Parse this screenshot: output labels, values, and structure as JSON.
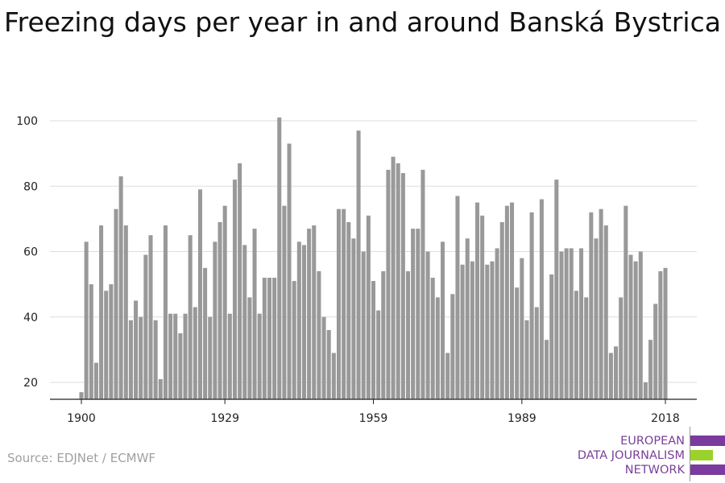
{
  "title": "Freezing days per year in and around Banská Bystrica",
  "source": "Source: EDJNet / ECMWF",
  "logo": {
    "lines": [
      "EUROPEAN",
      "DATA JOURNALISM",
      "NETWORK"
    ],
    "colors": [
      "#7b3b9e",
      "#9bd22a",
      "#7b3b9e"
    ]
  },
  "chart_data": {
    "type": "bar",
    "title": "Freezing days per year in and around Banská Bystrica",
    "xlabel": "",
    "ylabel": "",
    "x_start": 1900,
    "x_end": 2018,
    "xticks": [
      1900,
      1929,
      1959,
      1989,
      2018
    ],
    "yticks": [
      20,
      40,
      60,
      80,
      100
    ],
    "ylim": [
      15,
      102
    ],
    "grid": true,
    "bar_color": "#999999",
    "values": [
      17,
      63,
      50,
      26,
      68,
      48,
      50,
      73,
      83,
      68,
      39,
      45,
      40,
      59,
      65,
      39,
      21,
      68,
      41,
      41,
      35,
      41,
      65,
      43,
      79,
      55,
      40,
      63,
      69,
      74,
      41,
      82,
      87,
      62,
      46,
      67,
      41,
      52,
      52,
      52,
      101,
      74,
      93,
      51,
      63,
      62,
      67,
      68,
      54,
      40,
      36,
      29,
      73,
      73,
      69,
      64,
      97,
      60,
      71,
      51,
      42,
      54,
      85,
      89,
      87,
      84,
      54,
      67,
      67,
      85,
      60,
      52,
      46,
      63,
      29,
      47,
      77,
      56,
      64,
      57,
      75,
      71,
      56,
      57,
      61,
      69,
      74,
      75,
      49,
      58,
      39,
      72,
      43,
      76,
      33,
      53,
      82,
      60,
      61,
      61,
      48,
      61,
      46,
      72,
      64,
      73,
      68,
      29,
      31,
      46,
      74,
      59,
      57,
      60,
      20,
      33,
      44,
      54,
      55
    ]
  }
}
